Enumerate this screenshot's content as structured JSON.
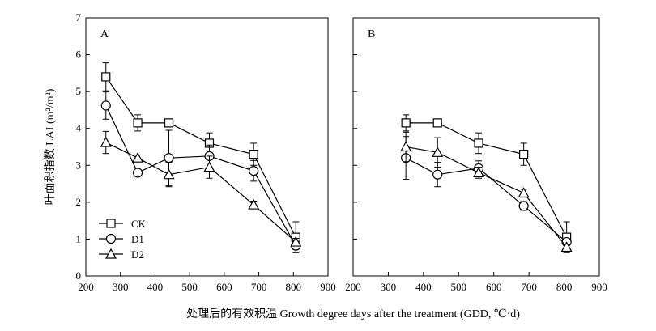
{
  "chart_data": [
    {
      "type": "line",
      "panel_label": "A",
      "ylabel": "叶面积指数 LAI (m²/m²)",
      "xlim": [
        200,
        900
      ],
      "ylim": [
        0,
        7
      ],
      "x_ticks": [
        200,
        300,
        400,
        500,
        600,
        700,
        800,
        900
      ],
      "y_ticks": [
        0,
        1,
        2,
        3,
        4,
        5,
        6,
        7
      ],
      "legend_position": "bottom-left",
      "series": [
        {
          "name": "CK",
          "marker": "square",
          "x": [
            258,
            350,
            440,
            557,
            685,
            807
          ],
          "y": [
            5.4,
            4.15,
            4.15,
            3.6,
            3.3,
            1.05
          ],
          "err": [
            0.38,
            0.22,
            0.0,
            0.28,
            0.3,
            0.42
          ]
        },
        {
          "name": "D1",
          "marker": "circle",
          "x": [
            258,
            350,
            440,
            557,
            685,
            807
          ],
          "y": [
            4.62,
            2.8,
            3.2,
            3.25,
            2.85,
            0.82
          ],
          "err": [
            0.37,
            0.0,
            0.75,
            0.3,
            0.28,
            0.1
          ]
        },
        {
          "name": "D2",
          "marker": "triangle",
          "x": [
            258,
            350,
            440,
            557,
            685,
            807
          ],
          "y": [
            3.62,
            3.2,
            2.75,
            2.95,
            1.93,
            0.92
          ],
          "err": [
            0.3,
            0.08,
            0.33,
            0.3,
            0.1,
            0.1
          ]
        }
      ]
    },
    {
      "type": "line",
      "panel_label": "B",
      "xlim": [
        200,
        900
      ],
      "ylim": [
        0,
        7
      ],
      "x_ticks": [
        200,
        300,
        400,
        500,
        600,
        700,
        800,
        900
      ],
      "series": [
        {
          "name": "CK",
          "marker": "square",
          "x": [
            350,
            440,
            557,
            685,
            807
          ],
          "y": [
            4.15,
            4.15,
            3.6,
            3.3,
            1.05
          ],
          "err": [
            0.22,
            0.05,
            0.28,
            0.3,
            0.42
          ]
        },
        {
          "name": "D1",
          "marker": "circle",
          "x": [
            350,
            440,
            557,
            685,
            807
          ],
          "y": [
            3.2,
            2.75,
            2.92,
            1.9,
            0.92
          ],
          "err": [
            0.58,
            0.33,
            0.2,
            0.12,
            0.1
          ]
        },
        {
          "name": "D2",
          "marker": "triangle",
          "x": [
            350,
            440,
            557,
            685,
            807
          ],
          "y": [
            3.5,
            3.35,
            2.8,
            2.25,
            0.78
          ],
          "err": [
            0.4,
            0.4,
            0.15,
            0.1,
            0.08
          ]
        }
      ]
    }
  ],
  "xlabel": "处理后的有效积温 Growth degree days after the  treatment (GDD, ℃·d)"
}
